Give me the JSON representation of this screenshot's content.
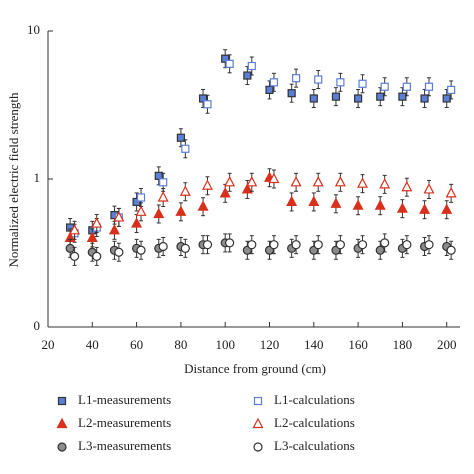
{
  "chart_data": {
    "type": "scatter",
    "xlabel": "Distance from ground (cm)",
    "ylabel": "Normalized electric field strength",
    "xlim": [
      20,
      206
    ],
    "xticks": [
      20,
      40,
      60,
      80,
      100,
      120,
      140,
      160,
      180,
      200
    ],
    "ylim": [
      0.1,
      10
    ],
    "yticks": [
      {
        "value": 0.1,
        "label": "0"
      },
      1,
      10
    ],
    "log_y": true,
    "series": [
      {
        "name": "L1-measurements",
        "color": "#5b7fd6",
        "marker": "square",
        "filled": true,
        "x": [
          30,
          40,
          50,
          60,
          70,
          80,
          90,
          100,
          110,
          120,
          130,
          140,
          150,
          160,
          170,
          180,
          190,
          200
        ],
        "values": [
          0.47,
          0.45,
          0.57,
          0.7,
          1.05,
          1.9,
          3.5,
          6.5,
          5.0,
          4.0,
          3.8,
          3.5,
          3.6,
          3.5,
          3.6,
          3.6,
          3.5,
          3.5
        ]
      },
      {
        "name": "L1-calculations",
        "color": "#5b7fd6",
        "marker": "square",
        "filled": false,
        "x": [
          32,
          42,
          52,
          62,
          72,
          82,
          92,
          102,
          112,
          122,
          132,
          142,
          152,
          162,
          172,
          182,
          192,
          202
        ],
        "values": [
          0.43,
          0.47,
          0.55,
          0.75,
          0.95,
          1.6,
          3.2,
          6.0,
          5.8,
          4.5,
          4.8,
          4.7,
          4.5,
          4.4,
          4.2,
          4.2,
          4.2,
          4.0
        ]
      },
      {
        "name": "L2-measurements",
        "color": "#d9301c",
        "marker": "triangle",
        "filled": true,
        "x": [
          30,
          40,
          50,
          60,
          70,
          80,
          90,
          100,
          110,
          120,
          130,
          140,
          150,
          160,
          170,
          180,
          190,
          200
        ],
        "values": [
          0.4,
          0.4,
          0.45,
          0.5,
          0.58,
          0.6,
          0.65,
          0.8,
          0.85,
          1.02,
          0.7,
          0.7,
          0.68,
          0.66,
          0.66,
          0.63,
          0.62,
          0.62
        ]
      },
      {
        "name": "L2-calculations",
        "color": "#d9301c",
        "marker": "triangle",
        "filled": false,
        "x": [
          32,
          42,
          52,
          62,
          72,
          82,
          92,
          102,
          112,
          122,
          132,
          142,
          152,
          162,
          172,
          182,
          192,
          202
        ],
        "values": [
          0.45,
          0.5,
          0.55,
          0.6,
          0.75,
          0.82,
          0.9,
          0.95,
          0.95,
          1.0,
          0.95,
          0.95,
          0.95,
          0.93,
          0.92,
          0.88,
          0.85,
          0.8
        ]
      },
      {
        "name": "L3-measurements",
        "color": "#8c8c8c",
        "marker": "circle",
        "filled": true,
        "x": [
          30,
          40,
          50,
          60,
          70,
          80,
          90,
          100,
          110,
          120,
          130,
          140,
          150,
          160,
          170,
          180,
          190,
          200
        ],
        "values": [
          0.34,
          0.32,
          0.33,
          0.34,
          0.34,
          0.35,
          0.36,
          0.37,
          0.33,
          0.33,
          0.34,
          0.33,
          0.33,
          0.34,
          0.33,
          0.34,
          0.35,
          0.35
        ]
      },
      {
        "name": "L3-calculations",
        "color": "#333333",
        "marker": "circle",
        "filled": false,
        "x": [
          32,
          42,
          52,
          62,
          72,
          82,
          92,
          102,
          112,
          122,
          132,
          142,
          152,
          162,
          172,
          182,
          192,
          202
        ],
        "values": [
          0.3,
          0.3,
          0.32,
          0.33,
          0.35,
          0.34,
          0.36,
          0.37,
          0.36,
          0.36,
          0.36,
          0.36,
          0.36,
          0.36,
          0.37,
          0.36,
          0.36,
          0.33
        ]
      }
    ]
  }
}
